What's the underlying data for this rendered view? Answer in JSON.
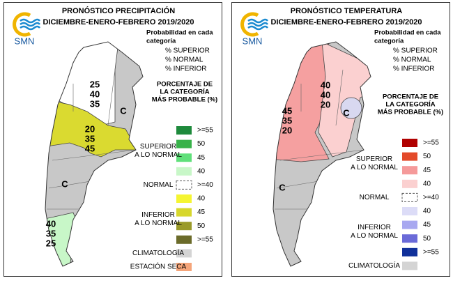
{
  "panels": [
    {
      "title": "PRONÓSTICO PRECIPITACIÓN",
      "subtitle": "DICIEMBRE-ENERO-FEBRERO 2019/2020",
      "logo": "SMN",
      "probability_title": [
        "Probabilidad en cada",
        "categoría"
      ],
      "probability_items": [
        "% SUPERIOR",
        "% NORMAL",
        "% INFERIOR"
      ],
      "region_labels": [
        [
          "25",
          "40",
          "35"
        ],
        [
          "20",
          "35",
          "45"
        ],
        [
          "40",
          "35",
          "25"
        ]
      ],
      "climatology_marks": [
        "C",
        "C"
      ],
      "legend": {
        "title": [
          "PORCENTAJE DE",
          "LA CATEGORÍA",
          "MÁS PROBABLE (%)"
        ],
        "groups": [
          {
            "label": [
              "SUPERIOR",
              "A LO NORMAL"
            ],
            "items": [
              {
                "label": ">=55",
                "color": "#1e8a3c"
              },
              {
                "label": "50",
                "color": "#38b24a"
              },
              {
                "label": "45",
                "color": "#5fe07a"
              },
              {
                "label": "40",
                "color": "#c8f7c8"
              }
            ]
          },
          {
            "label": [
              "NORMAL"
            ],
            "items": [
              {
                "label": ">=40",
                "color": "#ffffff",
                "dashed": true
              }
            ]
          },
          {
            "label": [
              "INFERIOR",
              "A LO NORMAL"
            ],
            "items": [
              {
                "label": "40",
                "color": "#f5f532"
              },
              {
                "label": "45",
                "color": "#d7d72c"
              },
              {
                "label": "50",
                "color": "#9a9a2a"
              },
              {
                "label": ">=55",
                "color": "#6b6b2a"
              }
            ]
          },
          {
            "label": [
              "CLIMATOLOGÍA"
            ],
            "items": [
              {
                "color": "#d4d4d4"
              }
            ]
          },
          {
            "label": [
              "ESTACIÓN SECA"
            ],
            "items": [
              {
                "color": "#f5a57a"
              }
            ]
          }
        ]
      }
    },
    {
      "title": "PRONÓSTICO TEMPERATURA",
      "subtitle": "DICIEMBRE-ENERO-FEBRERO 2019/2020",
      "logo": "SMN",
      "probability_title": [
        "Probabilidad en cada",
        "categoría"
      ],
      "probability_items": [
        "% SUPERIOR",
        "% NORMAL",
        "% INFERIOR"
      ],
      "region_labels": [
        [
          "40",
          "40",
          "20"
        ],
        [
          "45",
          "35",
          "20"
        ]
      ],
      "climatology_marks": [
        "C",
        "C"
      ],
      "legend": {
        "title": [
          "PORCENTAJE DE",
          "LA CATEGORÍA",
          "MÁS PROBABLE (%)"
        ],
        "groups": [
          {
            "label": [
              "SUPERIOR",
              "A LO NORMAL"
            ],
            "items": [
              {
                "label": ">=55",
                "color": "#b00000"
              },
              {
                "label": "50",
                "color": "#e34a2a"
              },
              {
                "label": "45",
                "color": "#f59a9a"
              },
              {
                "label": "40",
                "color": "#fbd0d0"
              }
            ]
          },
          {
            "label": [
              "NORMAL"
            ],
            "items": [
              {
                "label": ">=40",
                "color": "#ffffff",
                "dashed": true
              }
            ]
          },
          {
            "label": [
              "INFERIOR",
              "A LO NORMAL"
            ],
            "items": [
              {
                "label": "40",
                "color": "#dcdcf7"
              },
              {
                "label": "45",
                "color": "#a8a8f0"
              },
              {
                "label": "50",
                "color": "#6a6ad8"
              },
              {
                "label": ">=55",
                "color": "#10309a"
              }
            ]
          },
          {
            "label": [
              "CLIMATOLOGÍA"
            ],
            "items": [
              {
                "color": "#d4d4d4"
              }
            ]
          }
        ]
      }
    }
  ]
}
